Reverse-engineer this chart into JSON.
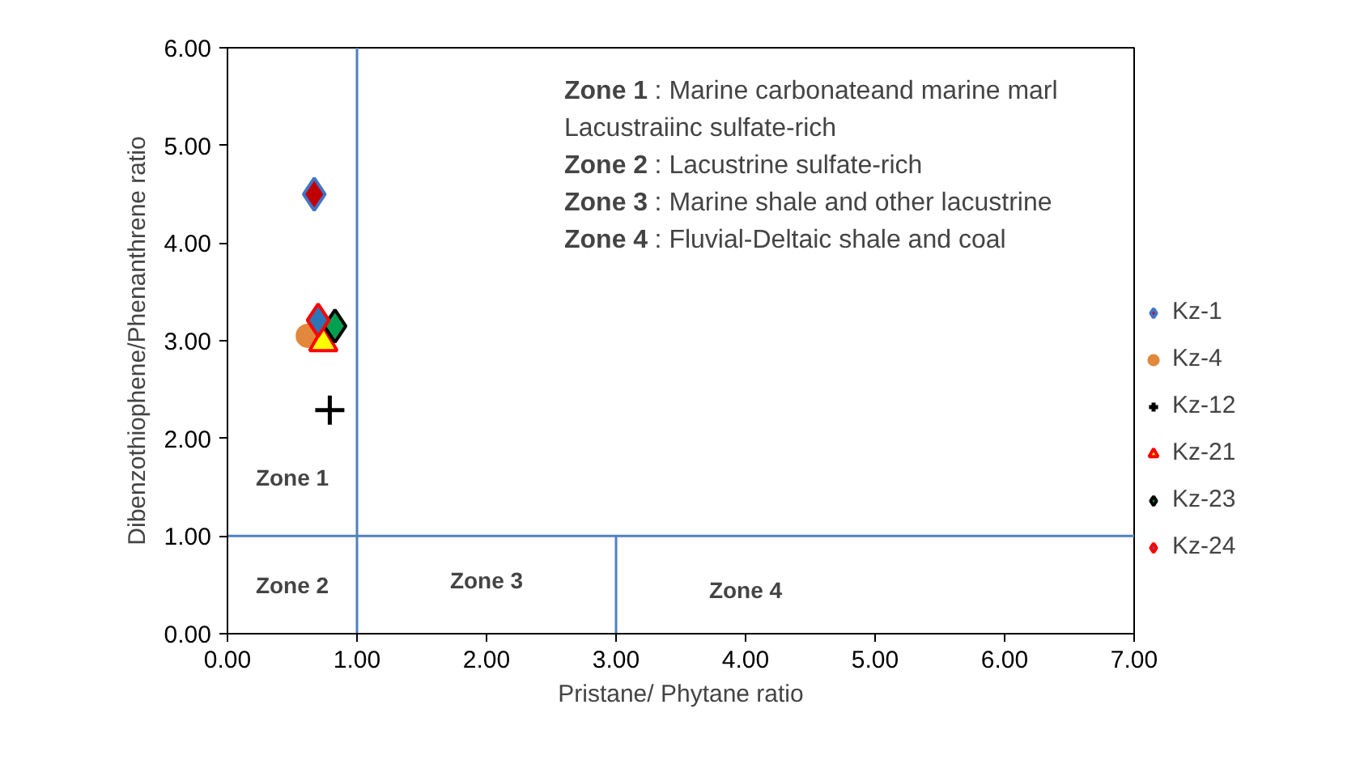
{
  "chart_data": {
    "type": "scatter",
    "xlabel": "Pristane/ Phytane ratio",
    "ylabel": "Dibenzothiophene/Phenanthrene ratio",
    "xlim": [
      0,
      7
    ],
    "ylim": [
      0,
      6
    ],
    "xticks": [
      {
        "value": 0,
        "label": "0.00"
      },
      {
        "value": 1,
        "label": "1.00"
      },
      {
        "value": 2,
        "label": "2.00"
      },
      {
        "value": 3,
        "label": "3.00"
      },
      {
        "value": 4,
        "label": "4.00"
      },
      {
        "value": 5,
        "label": "5.00"
      },
      {
        "value": 6,
        "label": "6.00"
      },
      {
        "value": 7,
        "label": "7.00"
      }
    ],
    "yticks": [
      {
        "value": 0,
        "label": "0.00"
      },
      {
        "value": 1,
        "label": "1.00"
      },
      {
        "value": 2,
        "label": "2.00"
      },
      {
        "value": 3,
        "label": "3.00"
      },
      {
        "value": 4,
        "label": "4.00"
      },
      {
        "value": 5,
        "label": "5.00"
      },
      {
        "value": 6,
        "label": "6.00"
      }
    ],
    "grid": false,
    "legend": "right",
    "series": [
      {
        "name": "Kz-1",
        "color": "#c00000",
        "marker": "diamond",
        "x": [
          0.67
        ],
        "values": [
          4.5
        ]
      },
      {
        "name": "Kz-4",
        "color": "#e2883c",
        "marker": "circle",
        "x": [
          0.62
        ],
        "values": [
          3.05
        ]
      },
      {
        "name": "Kz-12",
        "color": "#000000",
        "marker": "cross",
        "x": [
          0.79
        ],
        "values": [
          2.29
        ]
      },
      {
        "name": "Kz-21",
        "color": "#ffff00",
        "marker": "triangle",
        "x": [
          0.74
        ],
        "values": [
          2.98
        ]
      },
      {
        "name": "Kz-23",
        "color": "#00a050",
        "marker": "diamond",
        "x": [
          0.83
        ],
        "values": [
          3.15
        ]
      },
      {
        "name": "Kz-24",
        "color": "#2e75b6",
        "marker": "diamond",
        "x": [
          0.7
        ],
        "values": [
          3.21
        ]
      }
    ],
    "ref_lines": [
      {
        "axis": "x",
        "value": 1,
        "color": "#4f81bd"
      },
      {
        "axis": "y",
        "value": 1,
        "color": "#4f81bd"
      },
      {
        "axis": "x",
        "value": 3,
        "color": "#4f81bd"
      }
    ],
    "annotations": [
      "Zone 1: Marine carbonateand marine marl",
      "Lacustraiinc sulfate-rich",
      "Zone 2: Lacustrine sulfate-rich",
      "Zone 3: Marine shale and other lacustrine",
      "Zone 4: Fluvial-Deltaic shale and coal",
      "Zone 1",
      "Zone 2",
      "Zone 3",
      "Zone 4"
    ]
  }
}
